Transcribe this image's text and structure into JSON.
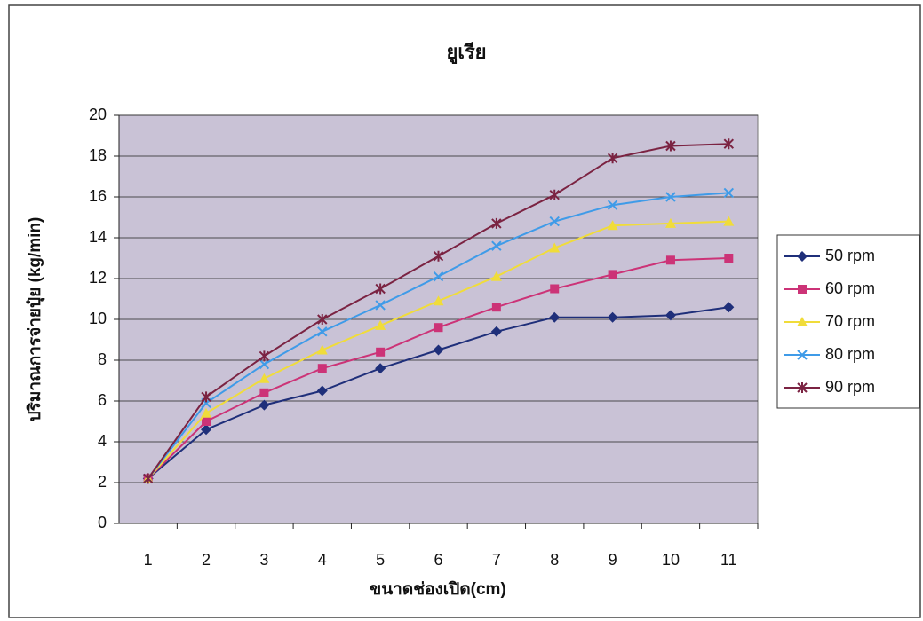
{
  "chart_data": {
    "type": "line",
    "title": "ยูเรีย",
    "x_label": "ขนาดช่องเปิด(cm)",
    "y_label": "ปริมาณการจ่ายปุ๋ย (kg/min)",
    "categories": [
      "1",
      "2",
      "3",
      "4",
      "5",
      "6",
      "7",
      "8",
      "9",
      "10",
      "11"
    ],
    "series": [
      {
        "name": "50 rpm",
        "color": "#1f2f7a",
        "marker": "diamond",
        "values": [
          2.2,
          4.6,
          5.8,
          6.5,
          7.6,
          8.5,
          9.4,
          10.1,
          10.1,
          10.2,
          10.6
        ]
      },
      {
        "name": "60 rpm",
        "color": "#cc3377",
        "marker": "square",
        "values": [
          2.2,
          5.0,
          6.4,
          7.6,
          8.4,
          9.6,
          10.6,
          11.5,
          12.2,
          12.9,
          13.0
        ]
      },
      {
        "name": "70 rpm",
        "color": "#f0dc3a",
        "marker": "triangle",
        "values": [
          2.2,
          5.4,
          7.1,
          8.5,
          9.7,
          10.9,
          12.1,
          13.5,
          14.6,
          14.7,
          14.8
        ]
      },
      {
        "name": "80 rpm",
        "color": "#3f9be8",
        "marker": "x",
        "values": [
          2.2,
          5.9,
          7.8,
          9.4,
          10.7,
          12.1,
          13.6,
          14.8,
          15.6,
          16.0,
          16.2
        ]
      },
      {
        "name": "90 rpm",
        "color": "#7b2342",
        "marker": "star",
        "values": [
          2.2,
          6.2,
          8.2,
          10.0,
          11.5,
          13.1,
          14.7,
          16.1,
          17.9,
          18.5,
          18.6
        ]
      }
    ],
    "ylim": [
      0,
      20
    ],
    "yticks": [
      0,
      2,
      4,
      6,
      8,
      10,
      12,
      14,
      16,
      18,
      20
    ],
    "grid": true,
    "legend": "right",
    "plot_background": "#c9c2d6"
  }
}
